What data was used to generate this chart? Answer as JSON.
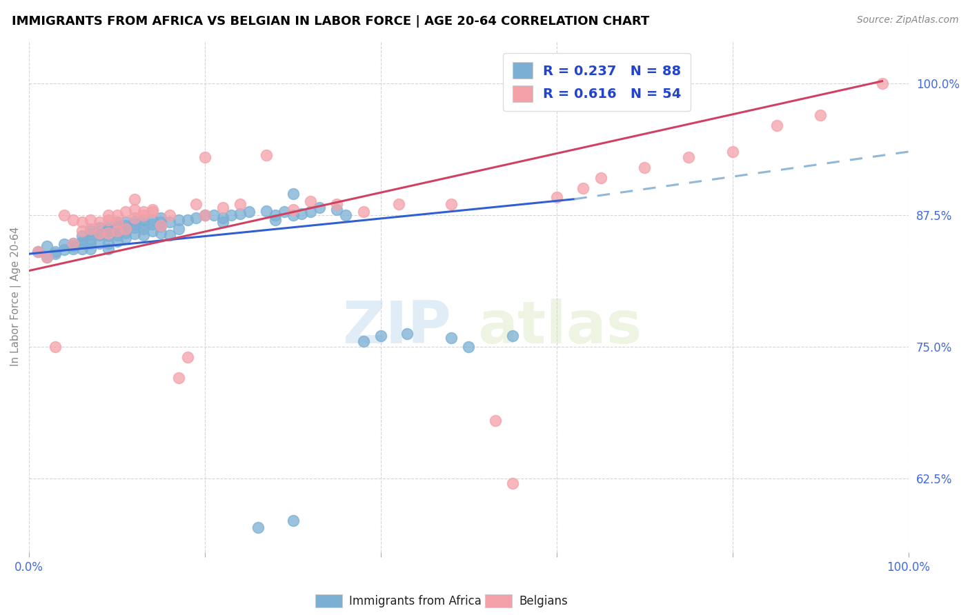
{
  "title": "IMMIGRANTS FROM AFRICA VS BELGIAN IN LABOR FORCE | AGE 20-64 CORRELATION CHART",
  "source": "Source: ZipAtlas.com",
  "ylabel": "In Labor Force | Age 20-64",
  "xlim": [
    0.0,
    1.0
  ],
  "ylim": [
    0.555,
    1.04
  ],
  "ytick_positions": [
    0.625,
    0.75,
    0.875,
    1.0
  ],
  "ytick_labels": [
    "62.5%",
    "75.0%",
    "87.5%",
    "100.0%"
  ],
  "blue_color": "#7bafd4",
  "pink_color": "#f4a0a8",
  "trend_blue": "#3060d0",
  "trend_pink": "#d04060",
  "dashed_color": "#90b8d8",
  "R_blue": 0.237,
  "N_blue": 88,
  "R_pink": 0.616,
  "N_pink": 54,
  "legend_label_blue": "Immigrants from Africa",
  "legend_label_pink": "Belgians",
  "watermark_zip": "ZIP",
  "watermark_atlas": "atlas",
  "blue_scatter_x": [
    0.01,
    0.02,
    0.02,
    0.03,
    0.03,
    0.04,
    0.04,
    0.05,
    0.05,
    0.05,
    0.06,
    0.06,
    0.06,
    0.06,
    0.07,
    0.07,
    0.07,
    0.07,
    0.07,
    0.08,
    0.08,
    0.08,
    0.08,
    0.08,
    0.09,
    0.09,
    0.09,
    0.09,
    0.09,
    0.09,
    0.1,
    0.1,
    0.1,
    0.1,
    0.1,
    0.1,
    0.11,
    0.11,
    0.11,
    0.11,
    0.11,
    0.12,
    0.12,
    0.12,
    0.12,
    0.13,
    0.13,
    0.13,
    0.13,
    0.14,
    0.14,
    0.14,
    0.15,
    0.15,
    0.15,
    0.15,
    0.16,
    0.16,
    0.17,
    0.17,
    0.18,
    0.19,
    0.2,
    0.21,
    0.22,
    0.22,
    0.23,
    0.24,
    0.25,
    0.27,
    0.28,
    0.28,
    0.29,
    0.3,
    0.3,
    0.31,
    0.32,
    0.33,
    0.35,
    0.36,
    0.38,
    0.4,
    0.43,
    0.48,
    0.5,
    0.55,
    0.3,
    0.26
  ],
  "blue_scatter_y": [
    0.84,
    0.835,
    0.845,
    0.84,
    0.838,
    0.842,
    0.847,
    0.845,
    0.848,
    0.843,
    0.85,
    0.848,
    0.855,
    0.843,
    0.852,
    0.857,
    0.86,
    0.848,
    0.843,
    0.856,
    0.86,
    0.863,
    0.858,
    0.848,
    0.86,
    0.865,
    0.862,
    0.855,
    0.848,
    0.843,
    0.862,
    0.865,
    0.868,
    0.86,
    0.856,
    0.85,
    0.865,
    0.868,
    0.862,
    0.858,
    0.853,
    0.866,
    0.869,
    0.863,
    0.857,
    0.866,
    0.87,
    0.862,
    0.856,
    0.866,
    0.87,
    0.86,
    0.868,
    0.872,
    0.864,
    0.858,
    0.868,
    0.856,
    0.87,
    0.862,
    0.87,
    0.872,
    0.875,
    0.875,
    0.872,
    0.868,
    0.875,
    0.876,
    0.878,
    0.879,
    0.875,
    0.87,
    0.878,
    0.875,
    0.895,
    0.876,
    0.878,
    0.882,
    0.88,
    0.875,
    0.755,
    0.76,
    0.762,
    0.758,
    0.75,
    0.76,
    0.585,
    0.578
  ],
  "pink_scatter_x": [
    0.01,
    0.02,
    0.03,
    0.04,
    0.05,
    0.05,
    0.06,
    0.06,
    0.07,
    0.07,
    0.08,
    0.08,
    0.09,
    0.09,
    0.09,
    0.1,
    0.1,
    0.11,
    0.11,
    0.12,
    0.12,
    0.13,
    0.13,
    0.14,
    0.14,
    0.15,
    0.16,
    0.17,
    0.18,
    0.19,
    0.2,
    0.22,
    0.24,
    0.27,
    0.3,
    0.32,
    0.35,
    0.38,
    0.42,
    0.48,
    0.53,
    0.55,
    0.6,
    0.63,
    0.65,
    0.7,
    0.75,
    0.8,
    0.85,
    0.9,
    0.1,
    0.12,
    0.2,
    0.97
  ],
  "pink_scatter_y": [
    0.84,
    0.835,
    0.75,
    0.875,
    0.87,
    0.848,
    0.86,
    0.868,
    0.862,
    0.87,
    0.868,
    0.858,
    0.87,
    0.875,
    0.858,
    0.868,
    0.875,
    0.878,
    0.862,
    0.872,
    0.88,
    0.878,
    0.875,
    0.878,
    0.88,
    0.865,
    0.875,
    0.72,
    0.74,
    0.885,
    0.875,
    0.882,
    0.885,
    0.932,
    0.88,
    0.888,
    0.885,
    0.878,
    0.885,
    0.885,
    0.68,
    0.62,
    0.892,
    0.9,
    0.91,
    0.92,
    0.93,
    0.935,
    0.96,
    0.97,
    0.86,
    0.89,
    0.93,
    1.0
  ]
}
